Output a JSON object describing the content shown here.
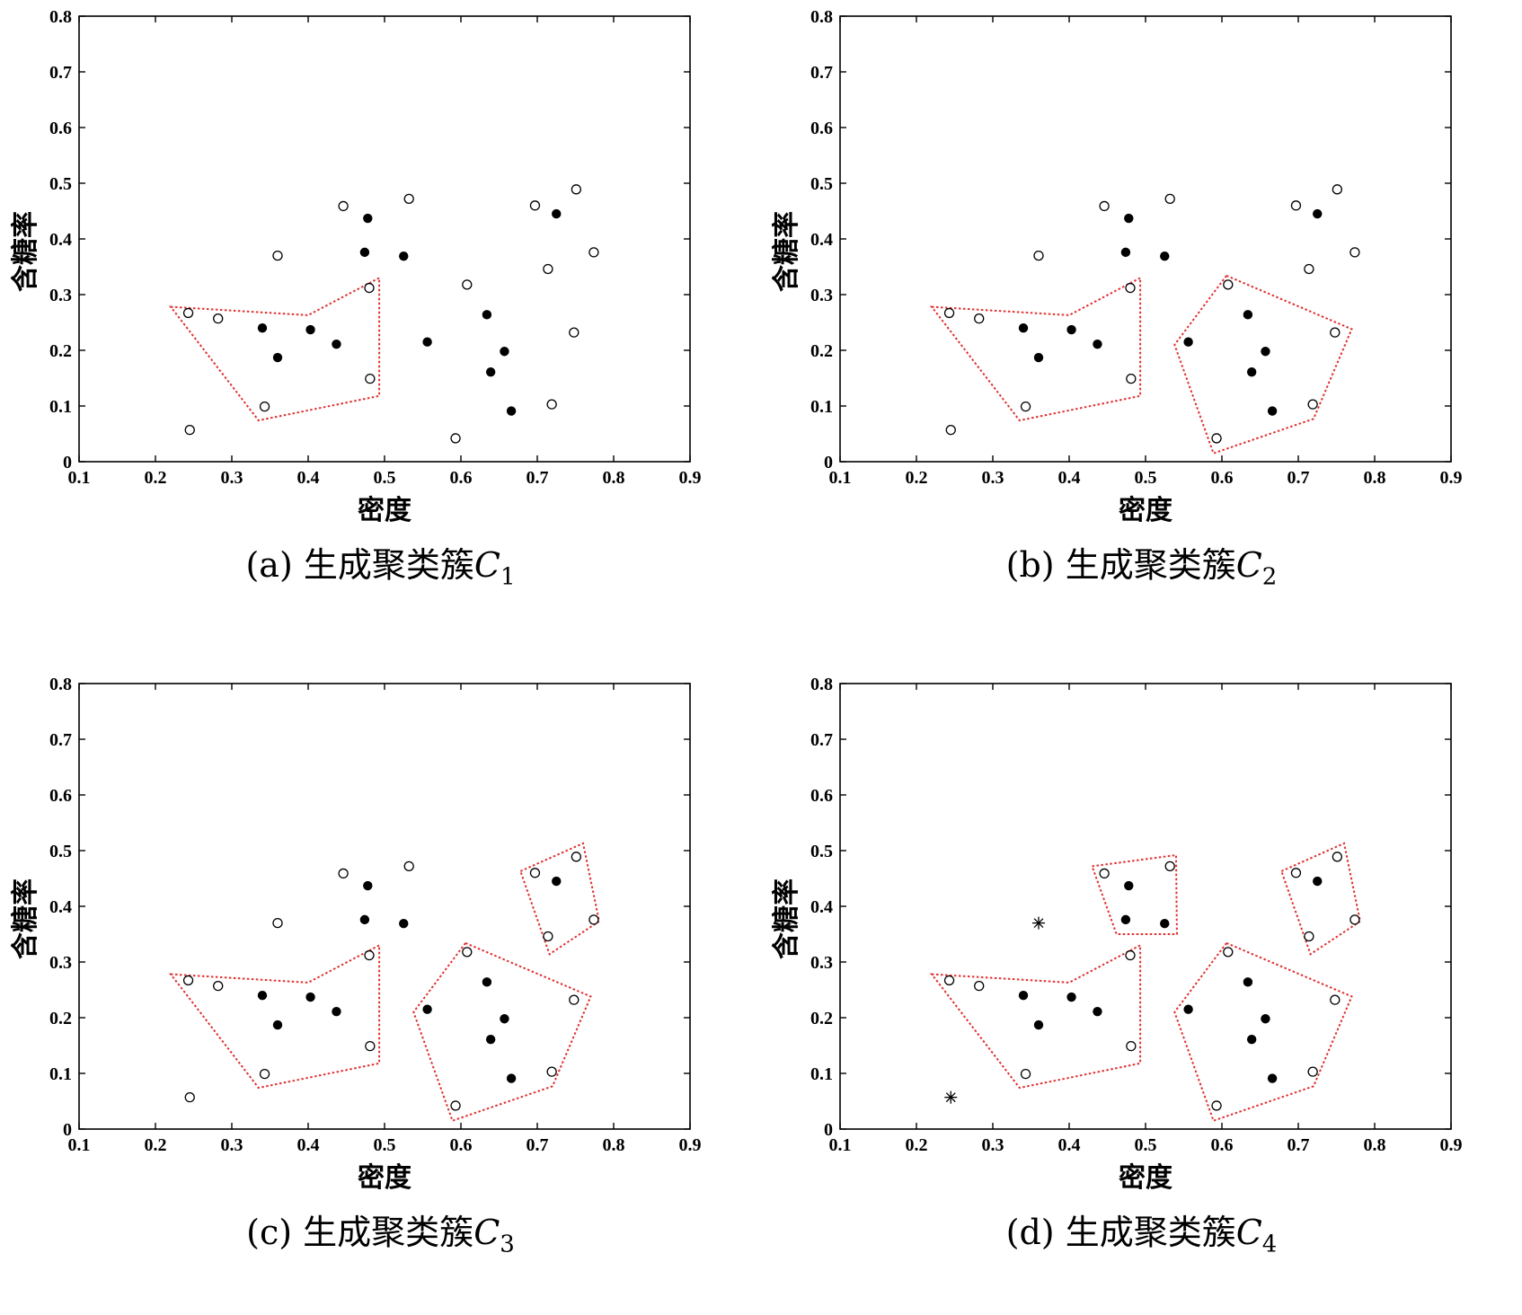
{
  "chart_data": [
    {
      "type": "scatter",
      "caption_prefix": "(a) 生成聚类簇",
      "caption_var": "C",
      "caption_sub": "1",
      "xlabel": "密度",
      "ylabel": "含糖率",
      "xlim": [
        0.1,
        0.9
      ],
      "ylim": [
        0,
        0.8
      ],
      "xticks": [
        "0.1",
        "0.2",
        "0.3",
        "0.4",
        "0.5",
        "0.6",
        "0.7",
        "0.8",
        "0.9"
      ],
      "yticks": [
        "0",
        "0.1",
        "0.2",
        "0.3",
        "0.4",
        "0.5",
        "0.6",
        "0.7",
        "0.8"
      ],
      "filled_points": [
        [
          0.34,
          0.24
        ],
        [
          0.36,
          0.187
        ],
        [
          0.403,
          0.237
        ],
        [
          0.437,
          0.211
        ],
        [
          0.474,
          0.376
        ],
        [
          0.478,
          0.437
        ],
        [
          0.525,
          0.369
        ],
        [
          0.556,
          0.215
        ],
        [
          0.634,
          0.264
        ],
        [
          0.639,
          0.161
        ],
        [
          0.657,
          0.198
        ],
        [
          0.666,
          0.091
        ],
        [
          0.725,
          0.445
        ]
      ],
      "hollow_points": [
        [
          0.243,
          0.267
        ],
        [
          0.245,
          0.057
        ],
        [
          0.282,
          0.257
        ],
        [
          0.343,
          0.099
        ],
        [
          0.36,
          0.37
        ],
        [
          0.446,
          0.459
        ],
        [
          0.48,
          0.312
        ],
        [
          0.481,
          0.149
        ],
        [
          0.532,
          0.472
        ],
        [
          0.593,
          0.042
        ],
        [
          0.608,
          0.318
        ],
        [
          0.697,
          0.46
        ],
        [
          0.714,
          0.346
        ],
        [
          0.719,
          0.103
        ],
        [
          0.748,
          0.232
        ],
        [
          0.751,
          0.489
        ],
        [
          0.774,
          0.376
        ]
      ],
      "star_points": [],
      "hulls": [
        [
          [
            0.22,
            0.278
          ],
          [
            0.4,
            0.263
          ],
          [
            0.493,
            0.33
          ],
          [
            0.493,
            0.118
          ],
          [
            0.335,
            0.074
          ]
        ]
      ],
      "hull_color": "#e03030"
    },
    {
      "type": "scatter",
      "caption_prefix": "(b) 生成聚类簇",
      "caption_var": "C",
      "caption_sub": "2",
      "xlabel": "密度",
      "ylabel": "含糖率",
      "xlim": [
        0.1,
        0.9
      ],
      "ylim": [
        0,
        0.8
      ],
      "xticks": [
        "0.1",
        "0.2",
        "0.3",
        "0.4",
        "0.5",
        "0.6",
        "0.7",
        "0.8",
        "0.9"
      ],
      "yticks": [
        "0",
        "0.1",
        "0.2",
        "0.3",
        "0.4",
        "0.5",
        "0.6",
        "0.7",
        "0.8"
      ],
      "filled_points": [
        [
          0.34,
          0.24
        ],
        [
          0.36,
          0.187
        ],
        [
          0.403,
          0.237
        ],
        [
          0.437,
          0.211
        ],
        [
          0.474,
          0.376
        ],
        [
          0.478,
          0.437
        ],
        [
          0.525,
          0.369
        ],
        [
          0.556,
          0.215
        ],
        [
          0.634,
          0.264
        ],
        [
          0.639,
          0.161
        ],
        [
          0.657,
          0.198
        ],
        [
          0.666,
          0.091
        ],
        [
          0.725,
          0.445
        ]
      ],
      "hollow_points": [
        [
          0.243,
          0.267
        ],
        [
          0.245,
          0.057
        ],
        [
          0.282,
          0.257
        ],
        [
          0.343,
          0.099
        ],
        [
          0.36,
          0.37
        ],
        [
          0.446,
          0.459
        ],
        [
          0.48,
          0.312
        ],
        [
          0.481,
          0.149
        ],
        [
          0.532,
          0.472
        ],
        [
          0.593,
          0.042
        ],
        [
          0.608,
          0.318
        ],
        [
          0.697,
          0.46
        ],
        [
          0.714,
          0.346
        ],
        [
          0.719,
          0.103
        ],
        [
          0.748,
          0.232
        ],
        [
          0.751,
          0.489
        ],
        [
          0.774,
          0.376
        ]
      ],
      "star_points": [],
      "hulls": [
        [
          [
            0.22,
            0.278
          ],
          [
            0.4,
            0.263
          ],
          [
            0.493,
            0.33
          ],
          [
            0.493,
            0.118
          ],
          [
            0.335,
            0.074
          ]
        ],
        [
          [
            0.606,
            0.334
          ],
          [
            0.77,
            0.238
          ],
          [
            0.72,
            0.077
          ],
          [
            0.589,
            0.015
          ],
          [
            0.538,
            0.21
          ]
        ]
      ],
      "hull_color": "#e03030"
    },
    {
      "type": "scatter",
      "caption_prefix": "(c) 生成聚类簇",
      "caption_var": "C",
      "caption_sub": "3",
      "xlabel": "密度",
      "ylabel": "含糖率",
      "xlim": [
        0.1,
        0.9
      ],
      "ylim": [
        0,
        0.8
      ],
      "xticks": [
        "0.1",
        "0.2",
        "0.3",
        "0.4",
        "0.5",
        "0.6",
        "0.7",
        "0.8",
        "0.9"
      ],
      "yticks": [
        "0",
        "0.1",
        "0.2",
        "0.3",
        "0.4",
        "0.5",
        "0.6",
        "0.7",
        "0.8"
      ],
      "filled_points": [
        [
          0.34,
          0.24
        ],
        [
          0.36,
          0.187
        ],
        [
          0.403,
          0.237
        ],
        [
          0.437,
          0.211
        ],
        [
          0.474,
          0.376
        ],
        [
          0.478,
          0.437
        ],
        [
          0.525,
          0.369
        ],
        [
          0.556,
          0.215
        ],
        [
          0.634,
          0.264
        ],
        [
          0.639,
          0.161
        ],
        [
          0.657,
          0.198
        ],
        [
          0.666,
          0.091
        ],
        [
          0.725,
          0.445
        ]
      ],
      "hollow_points": [
        [
          0.243,
          0.267
        ],
        [
          0.245,
          0.057
        ],
        [
          0.282,
          0.257
        ],
        [
          0.343,
          0.099
        ],
        [
          0.36,
          0.37
        ],
        [
          0.446,
          0.459
        ],
        [
          0.48,
          0.312
        ],
        [
          0.481,
          0.149
        ],
        [
          0.532,
          0.472
        ],
        [
          0.593,
          0.042
        ],
        [
          0.608,
          0.318
        ],
        [
          0.697,
          0.46
        ],
        [
          0.714,
          0.346
        ],
        [
          0.719,
          0.103
        ],
        [
          0.748,
          0.232
        ],
        [
          0.751,
          0.489
        ],
        [
          0.774,
          0.376
        ]
      ],
      "star_points": [],
      "hulls": [
        [
          [
            0.22,
            0.278
          ],
          [
            0.4,
            0.263
          ],
          [
            0.493,
            0.33
          ],
          [
            0.493,
            0.118
          ],
          [
            0.335,
            0.074
          ]
        ],
        [
          [
            0.606,
            0.334
          ],
          [
            0.77,
            0.238
          ],
          [
            0.72,
            0.077
          ],
          [
            0.589,
            0.015
          ],
          [
            0.538,
            0.21
          ]
        ],
        [
          [
            0.678,
            0.463
          ],
          [
            0.76,
            0.513
          ],
          [
            0.781,
            0.373
          ],
          [
            0.716,
            0.314
          ]
        ]
      ],
      "hull_color": "#e03030"
    },
    {
      "type": "scatter",
      "caption_prefix": "(d) 生成聚类簇",
      "caption_var": "C",
      "caption_sub": "4",
      "xlabel": "密度",
      "ylabel": "含糖率",
      "xlim": [
        0.1,
        0.9
      ],
      "ylim": [
        0,
        0.8
      ],
      "xticks": [
        "0.1",
        "0.2",
        "0.3",
        "0.4",
        "0.5",
        "0.6",
        "0.7",
        "0.8",
        "0.9"
      ],
      "yticks": [
        "0",
        "0.1",
        "0.2",
        "0.3",
        "0.4",
        "0.5",
        "0.6",
        "0.7",
        "0.8"
      ],
      "filled_points": [
        [
          0.34,
          0.24
        ],
        [
          0.36,
          0.187
        ],
        [
          0.403,
          0.237
        ],
        [
          0.437,
          0.211
        ],
        [
          0.474,
          0.376
        ],
        [
          0.478,
          0.437
        ],
        [
          0.525,
          0.369
        ],
        [
          0.556,
          0.215
        ],
        [
          0.634,
          0.264
        ],
        [
          0.639,
          0.161
        ],
        [
          0.657,
          0.198
        ],
        [
          0.666,
          0.091
        ],
        [
          0.725,
          0.445
        ]
      ],
      "hollow_points": [
        [
          0.243,
          0.267
        ],
        [
          0.282,
          0.257
        ],
        [
          0.343,
          0.099
        ],
        [
          0.446,
          0.459
        ],
        [
          0.48,
          0.312
        ],
        [
          0.481,
          0.149
        ],
        [
          0.532,
          0.472
        ],
        [
          0.593,
          0.042
        ],
        [
          0.608,
          0.318
        ],
        [
          0.697,
          0.46
        ],
        [
          0.714,
          0.346
        ],
        [
          0.719,
          0.103
        ],
        [
          0.748,
          0.232
        ],
        [
          0.751,
          0.489
        ],
        [
          0.774,
          0.376
        ]
      ],
      "star_points": [
        [
          0.36,
          0.37
        ],
        [
          0.245,
          0.057
        ]
      ],
      "hulls": [
        [
          [
            0.22,
            0.278
          ],
          [
            0.4,
            0.263
          ],
          [
            0.493,
            0.33
          ],
          [
            0.493,
            0.118
          ],
          [
            0.335,
            0.074
          ]
        ],
        [
          [
            0.606,
            0.334
          ],
          [
            0.77,
            0.238
          ],
          [
            0.72,
            0.077
          ],
          [
            0.589,
            0.015
          ],
          [
            0.538,
            0.21
          ]
        ],
        [
          [
            0.678,
            0.463
          ],
          [
            0.76,
            0.513
          ],
          [
            0.781,
            0.373
          ],
          [
            0.716,
            0.314
          ]
        ],
        [
          [
            0.43,
            0.472
          ],
          [
            0.54,
            0.492
          ],
          [
            0.541,
            0.35
          ],
          [
            0.462,
            0.35
          ]
        ]
      ],
      "hull_color": "#e03030"
    }
  ]
}
